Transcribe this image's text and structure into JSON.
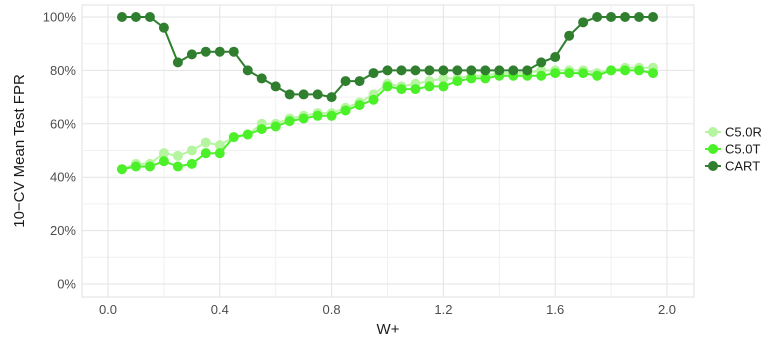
{
  "chart_data": {
    "type": "line",
    "title": "",
    "xlabel": "W+",
    "ylabel": "10−CV Mean Test FPR",
    "xlim": [
      0.0,
      2.0
    ],
    "ylim": [
      0,
      100
    ],
    "x_ticks": [
      "0.0",
      "0.4",
      "0.8",
      "1.2",
      "1.6",
      "2.0"
    ],
    "y_ticks": [
      "0%",
      "20%",
      "40%",
      "60%",
      "80%",
      "100%"
    ],
    "grid": true,
    "legend_position": "right",
    "x": [
      0.05,
      0.1,
      0.15,
      0.2,
      0.25,
      0.3,
      0.35,
      0.4,
      0.45,
      0.5,
      0.55,
      0.6,
      0.65,
      0.7,
      0.75,
      0.8,
      0.85,
      0.9,
      0.95,
      1.0,
      1.05,
      1.1,
      1.15,
      1.2,
      1.25,
      1.3,
      1.35,
      1.4,
      1.45,
      1.5,
      1.55,
      1.6,
      1.65,
      1.7,
      1.75,
      1.8,
      1.85,
      1.9,
      1.95
    ],
    "series": [
      {
        "name": "C5.0R",
        "color": "#b6f5a0",
        "values": [
          43,
          45,
          45,
          49,
          48,
          50,
          53,
          52,
          55,
          56,
          60,
          60,
          62,
          63,
          64,
          64,
          66,
          68,
          71,
          75,
          74,
          75,
          76,
          77,
          77,
          78,
          78,
          79,
          79,
          79,
          80,
          80,
          80,
          80,
          79,
          80,
          81,
          81,
          81
        ]
      },
      {
        "name": "C5.0T",
        "color": "#4cf029",
        "values": [
          43,
          44,
          44,
          46,
          44,
          45,
          49,
          49,
          55,
          56,
          58,
          59,
          61,
          62,
          63,
          63,
          65,
          67,
          69,
          74,
          73,
          73,
          74,
          74,
          76,
          77,
          77,
          78,
          78,
          78,
          78,
          79,
          79,
          79,
          78,
          80,
          80,
          80,
          79
        ]
      },
      {
        "name": "CART",
        "color": "#2f7f2f",
        "values": [
          100,
          100,
          100,
          96,
          83,
          86,
          87,
          87,
          87,
          80,
          77,
          74,
          71,
          71,
          71,
          70,
          76,
          76,
          79,
          80,
          80,
          80,
          80,
          80,
          80,
          80,
          80,
          80,
          80,
          80,
          83,
          85,
          93,
          98,
          100,
          100,
          100,
          100,
          100
        ]
      }
    ]
  }
}
